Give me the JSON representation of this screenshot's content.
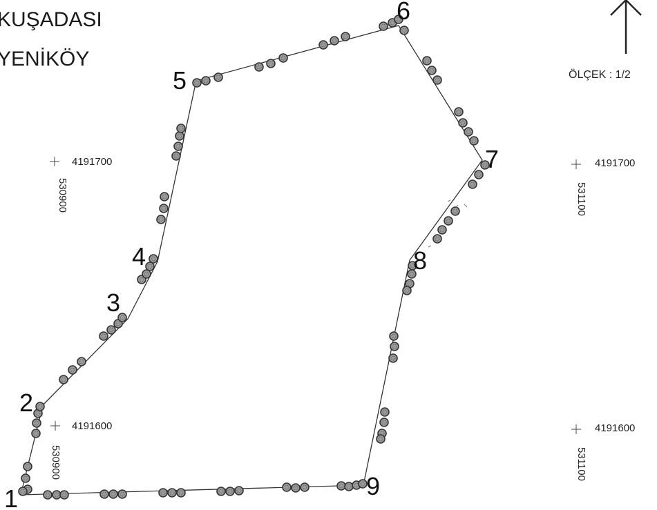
{
  "header": {
    "district": "KUŞADASI",
    "village": "YENİKÖY"
  },
  "scale": {
    "label": "ÖLÇEK : 1/2"
  },
  "parcel": {
    "points": [
      {
        "label": "1"
      },
      {
        "label": "2"
      },
      {
        "label": "3"
      },
      {
        "label": "4"
      },
      {
        "label": "5"
      },
      {
        "label": "6"
      },
      {
        "label": "7"
      },
      {
        "label": "8"
      },
      {
        "label": "9"
      }
    ]
  },
  "grid": {
    "north_top": "4191700",
    "north_bottom": "4191600",
    "east_left": "530900",
    "east_right": "531100",
    "left_top_easting": "530900",
    "left_bottom_easting": "530900",
    "right_top_easting": "531100",
    "right_bottom_easting": "531100"
  },
  "icons": {
    "north_arrow": "north-arrow-icon",
    "tree_marker": "tree-icon",
    "grid_tick": "cross-icon"
  }
}
